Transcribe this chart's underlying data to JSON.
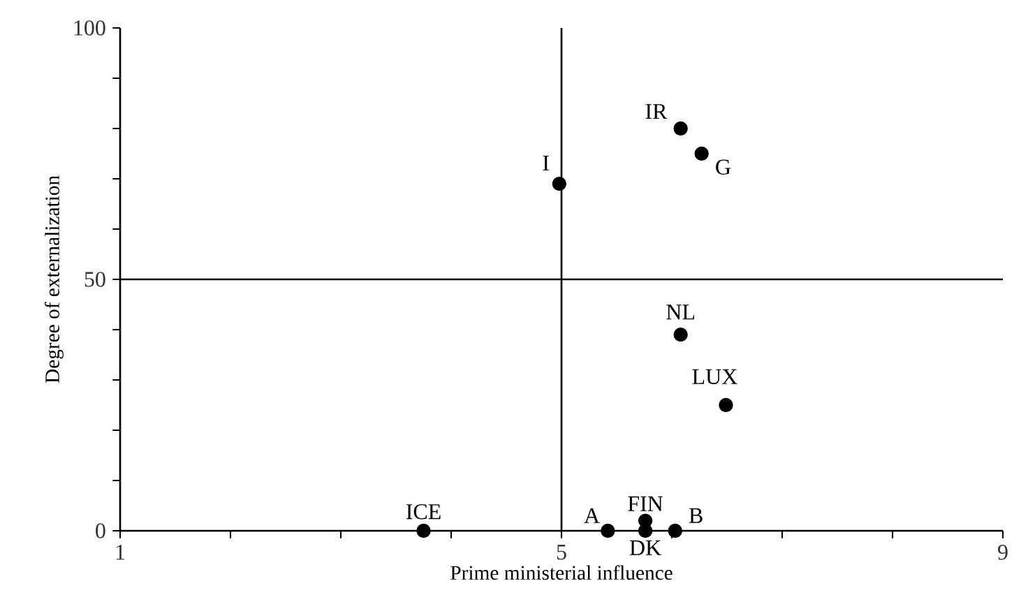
{
  "chart_data": {
    "type": "scatter",
    "xlabel": "Prime ministerial influence",
    "ylabel": "Degree of externalization",
    "xlim": [
      1,
      9
    ],
    "ylim": [
      0,
      100
    ],
    "xticks": [
      1,
      {
        "value": 2,
        "label": null
      },
      {
        "value": 3,
        "label": null
      },
      {
        "value": 4,
        "label": null
      },
      5,
      {
        "value": 6,
        "label": null
      },
      {
        "value": 7,
        "label": null
      },
      {
        "value": 8,
        "label": null
      },
      9
    ],
    "yticks": [
      0,
      {
        "value": 10,
        "label": null
      },
      {
        "value": 20,
        "label": null
      },
      {
        "value": 30,
        "label": null
      },
      {
        "value": 40,
        "label": null
      },
      50,
      {
        "value": 60,
        "label": null
      },
      {
        "value": 70,
        "label": null
      },
      {
        "value": 80,
        "label": null
      },
      {
        "value": 90,
        "label": null
      },
      100
    ],
    "marker": "circle",
    "grid": false,
    "ref_lines": [
      {
        "axis": "x",
        "value": 5,
        "color": "#000000"
      },
      {
        "axis": "y",
        "value": 50,
        "color": "#000000"
      }
    ],
    "series": [
      {
        "color": "#000000",
        "x": [
          3.75,
          4.98,
          6.08,
          6.27,
          6.08,
          6.49,
          5.42,
          5.76,
          5.76,
          6.03
        ],
        "values": [
          0,
          69,
          80,
          75,
          39,
          25,
          0,
          2,
          0,
          0
        ]
      }
    ],
    "annotations": [
      {
        "text": "ICE",
        "x": 3.75,
        "y": 0
      },
      {
        "text": "I",
        "x": 4.98,
        "y": 69
      },
      {
        "text": "IR",
        "x": 6.08,
        "y": 80
      },
      {
        "text": "G",
        "x": 6.27,
        "y": 75
      },
      {
        "text": "NL",
        "x": 6.08,
        "y": 39
      },
      {
        "text": "LUX",
        "x": 6.49,
        "y": 25
      },
      {
        "text": "A",
        "x": 5.42,
        "y": 0
      },
      {
        "text": "FIN",
        "x": 5.76,
        "y": 2
      },
      {
        "text": "DK",
        "x": 5.76,
        "y": 0
      },
      {
        "text": "B",
        "x": 6.03,
        "y": 0
      }
    ]
  }
}
